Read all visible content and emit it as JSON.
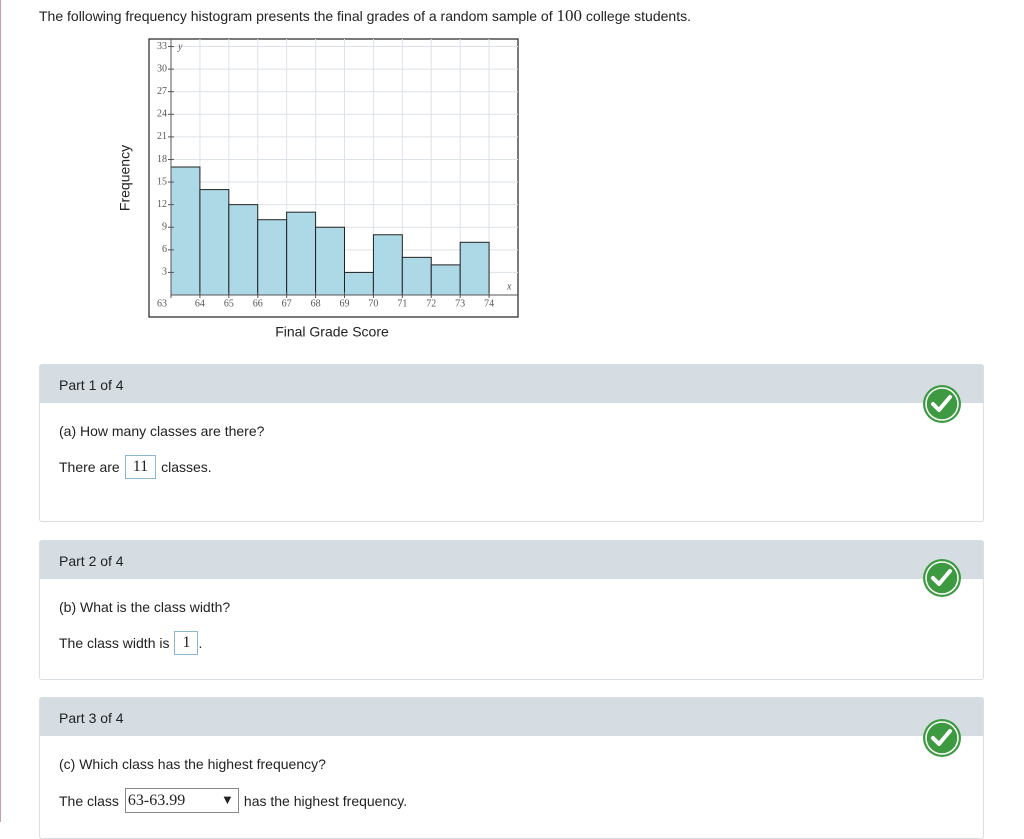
{
  "intro": {
    "text_before": "The following frequency histogram presents the final grades of a random sample of",
    "number": "100",
    "text_after": "college students."
  },
  "chart_data": {
    "type": "histogram",
    "x_label": "Final Grade Score",
    "y_label": "Frequency",
    "x_symbol": "x",
    "y_symbol": "y",
    "bins": [
      63,
      64,
      65,
      66,
      67,
      68,
      69,
      70,
      71,
      72,
      73,
      74
    ],
    "values": [
      17,
      14,
      12,
      10,
      11,
      9,
      3,
      8,
      5,
      4,
      7
    ],
    "color": "#add8e6",
    "xlim": [
      63,
      75
    ],
    "ylim": [
      0,
      34
    ],
    "xticks": [
      63,
      64,
      65,
      66,
      67,
      68,
      69,
      70,
      71,
      72,
      73,
      74
    ],
    "yticks": [
      3,
      6,
      9,
      12,
      15,
      18,
      21,
      24,
      27,
      30,
      33
    ],
    "grid": true
  },
  "parts": [
    {
      "header": "Part 1 of 4",
      "question": "(a) How many classes are there?",
      "answer_prefix": "There are",
      "answer": "11",
      "answer_suffix": "classes."
    },
    {
      "header": "Part 2 of 4",
      "question": "(b) What is the class width?",
      "answer_prefix": "The class width is",
      "answer": "1",
      "answer_suffix": "."
    },
    {
      "header": "Part 3 of 4",
      "question": "(c) Which class has the highest frequency?",
      "answer_prefix": "The class",
      "answer": "63-63.99",
      "answer_suffix": "has the highest frequency."
    }
  ]
}
